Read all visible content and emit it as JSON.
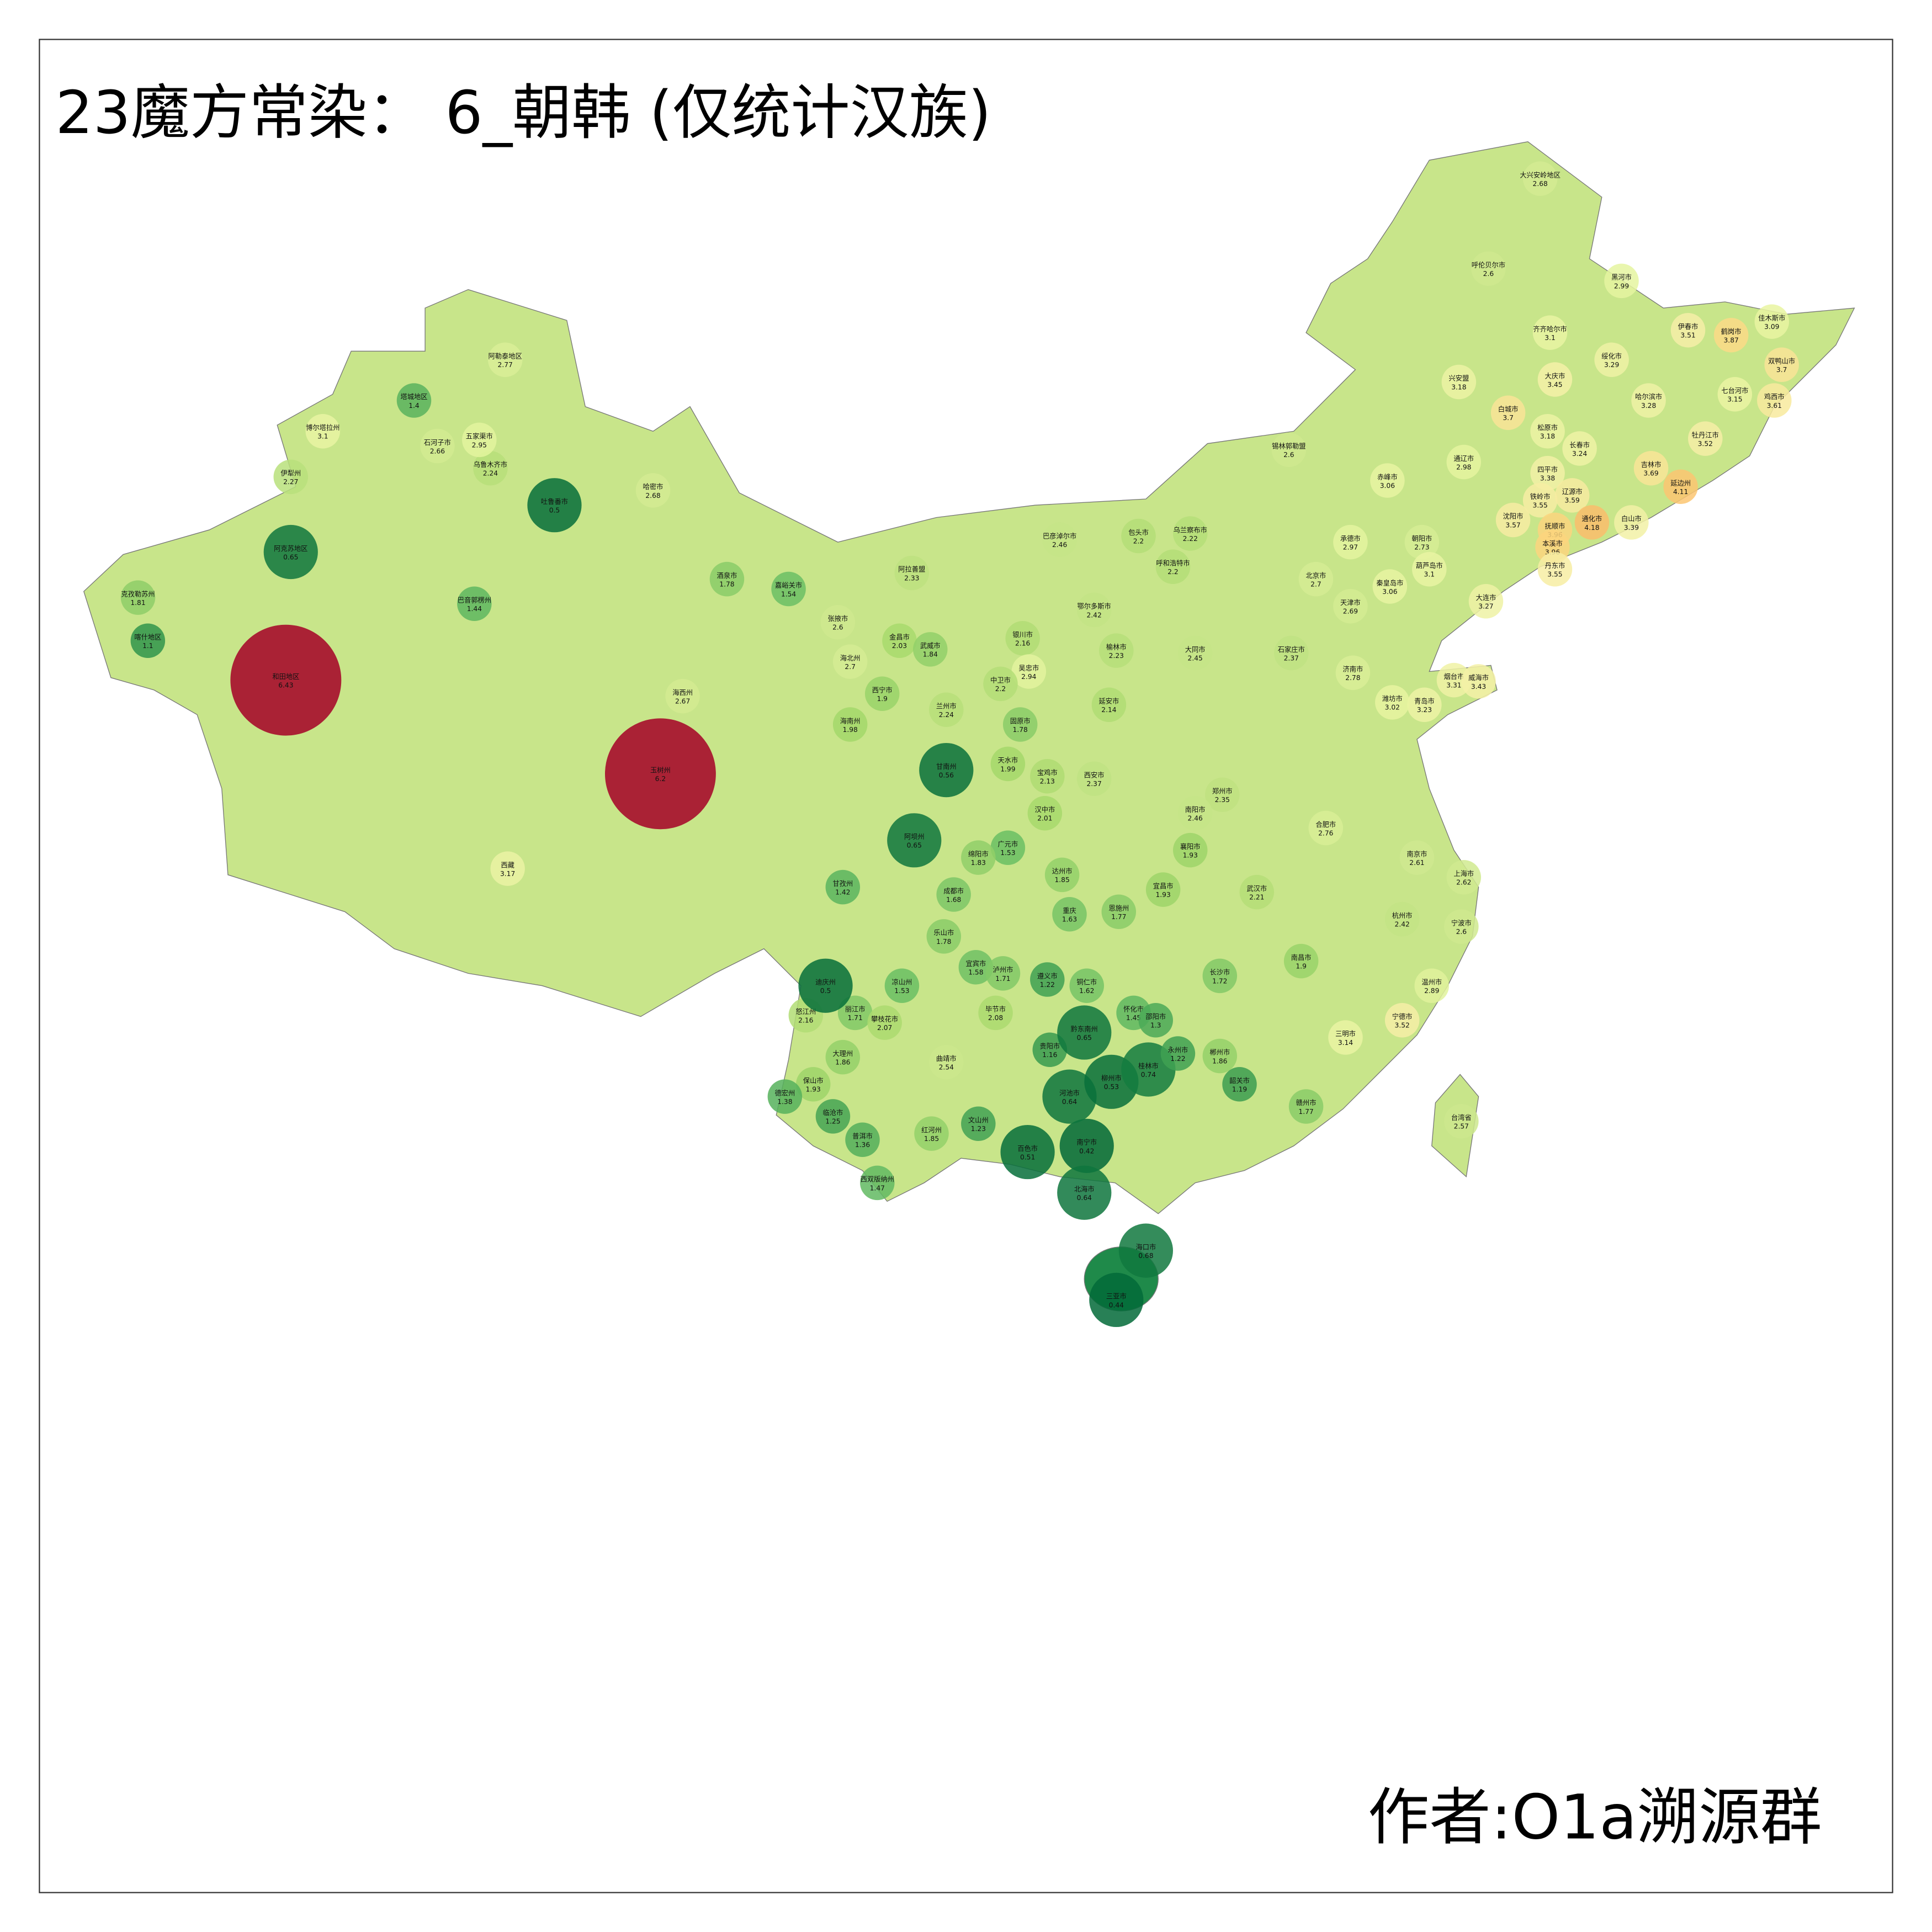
{
  "title": "23魔方常染： 6_朝韩 (仅统计汉族)",
  "author": "作者:O1a溯源群",
  "regions": [
    {
      "name": "大兴安岭地区",
      "value": 2.68
    },
    {
      "name": "呼伦贝尔市",
      "value": 2.6
    },
    {
      "name": "黑河市",
      "value": 2.99
    },
    {
      "name": "齐齐哈尔市",
      "value": 3.1
    },
    {
      "name": "伊春市",
      "value": 3.51
    },
    {
      "name": "鹤岗市",
      "value": 3.87
    },
    {
      "name": "佳木斯市",
      "value": 3.09
    },
    {
      "name": "双鸭山市",
      "value": 3.7
    },
    {
      "name": "绥化市",
      "value": 3.29
    },
    {
      "name": "大庆市",
      "value": 3.45
    },
    {
      "name": "哈尔滨市",
      "value": 3.28
    },
    {
      "name": "七台河市",
      "value": 3.15
    },
    {
      "name": "鸡西市",
      "value": 3.61
    },
    {
      "name": "兴安盟",
      "value": 3.18
    },
    {
      "name": "白城市",
      "value": 3.7
    },
    {
      "name": "松原市",
      "value": 3.18
    },
    {
      "name": "长春市",
      "value": 3.24
    },
    {
      "name": "牡丹江市",
      "value": 3.52
    },
    {
      "name": "吉林市",
      "value": 3.69
    },
    {
      "name": "延边州",
      "value": 4.11
    },
    {
      "name": "通辽市",
      "value": 2.98
    },
    {
      "name": "四平市",
      "value": 3.38
    },
    {
      "name": "铁岭市",
      "value": 3.55
    },
    {
      "name": "辽源市",
      "value": 3.59
    },
    {
      "name": "赤峰市",
      "value": 3.06
    },
    {
      "name": "抚顺市",
      "value": 3.96
    },
    {
      "name": "通化市",
      "value": 4.18
    },
    {
      "name": "白山市",
      "value": 3.39
    },
    {
      "name": "沈阳市",
      "value": 3.57
    },
    {
      "name": "本溪市",
      "value": 3.96
    },
    {
      "name": "丹东市",
      "value": 3.55
    },
    {
      "name": "大连市",
      "value": 3.27
    },
    {
      "name": "锡林郭勒盟",
      "value": 2.6
    },
    {
      "name": "承德市",
      "value": 2.97
    },
    {
      "name": "朝阳市",
      "value": 2.73
    },
    {
      "name": "葫芦岛市",
      "value": 3.1
    },
    {
      "name": "秦皇岛市",
      "value": 3.06
    },
    {
      "name": "北京市",
      "value": 2.7
    },
    {
      "name": "天津市",
      "value": 2.69
    },
    {
      "name": "乌兰察布市",
      "value": 2.22
    },
    {
      "name": "呼和浩特市",
      "value": 2.2
    },
    {
      "name": "包头市",
      "value": 2.2
    },
    {
      "name": "巴彦淖尔市",
      "value": 2.46
    },
    {
      "name": "鄂尔多斯市",
      "value": 2.42
    },
    {
      "name": "阿拉善盟",
      "value": 2.33
    },
    {
      "name": "大同市",
      "value": 2.45
    },
    {
      "name": "石家庄市",
      "value": 2.37
    },
    {
      "name": "烟台市",
      "value": 3.31
    },
    {
      "name": "威海市",
      "value": 3.43
    },
    {
      "name": "青岛市",
      "value": 3.23
    },
    {
      "name": "济南市",
      "value": 2.78
    },
    {
      "name": "潍坊市",
      "value": 3.02
    },
    {
      "name": "西安市",
      "value": 2.37
    },
    {
      "name": "郑州市",
      "value": 2.35
    },
    {
      "name": "南阳市",
      "value": 2.46
    },
    {
      "name": "上海市",
      "value": 2.62
    },
    {
      "name": "南京市",
      "value": 2.61
    },
    {
      "name": "杭州市",
      "value": 2.42
    },
    {
      "name": "宁波市",
      "value": 2.6
    },
    {
      "name": "温州市",
      "value": 2.89
    },
    {
      "name": "宁德市",
      "value": 3.52
    },
    {
      "name": "三明市",
      "value": 3.14
    },
    {
      "name": "台湾省",
      "value": 2.57
    },
    {
      "name": "武汉市",
      "value": 2.21
    },
    {
      "name": "长沙市",
      "value": 1.72
    },
    {
      "name": "南昌市",
      "value": 1.9
    },
    {
      "name": "赣州市",
      "value": 1.77
    },
    {
      "name": "重庆",
      "value": 1.63
    },
    {
      "name": "成都市",
      "value": 1.68
    },
    {
      "name": "贵阳市",
      "value": 1.16
    },
    {
      "name": "遵义市",
      "value": 1.22
    },
    {
      "name": "曲靖市",
      "value": 2.54
    },
    {
      "name": "大理州",
      "value": 1.86
    },
    {
      "name": "丽江市",
      "value": 1.71
    },
    {
      "name": "怒江州",
      "value": 2.16
    },
    {
      "name": "迪庆州",
      "value": 0.5
    },
    {
      "name": "甘孜州",
      "value": 1.42
    },
    {
      "name": "阿坝州",
      "value": 0.65
    },
    {
      "name": "甘南州",
      "value": 0.56
    },
    {
      "name": "兰州市",
      "value": 2.24
    },
    {
      "name": "西宁市",
      "value": 1.9
    },
    {
      "name": "海南州",
      "value": 1.98
    },
    {
      "name": "海西州",
      "value": 2.67
    },
    {
      "name": "玉树州",
      "value": 6.2
    },
    {
      "name": "和田地区",
      "value": 6.43
    },
    {
      "name": "阿克苏地区",
      "value": 0.65
    },
    {
      "name": "吐鲁番市",
      "value": 0.5
    },
    {
      "name": "巴音郭楞州",
      "value": 1.44
    },
    {
      "name": "喀什地区",
      "value": 1.1
    },
    {
      "name": "克孜勒苏州",
      "value": 1.81
    },
    {
      "name": "伊犁州",
      "value": 2.27
    },
    {
      "name": "塔城地区",
      "value": 1.4
    },
    {
      "name": "阿勒泰地区",
      "value": 2.77
    },
    {
      "name": "博尔塔拉州",
      "value": 3.1
    },
    {
      "name": "乌鲁木齐市",
      "value": 2.24
    },
    {
      "name": "石河子市",
      "value": 2.66
    },
    {
      "name": "五家渠市",
      "value": 2.95
    },
    {
      "name": "哈密市",
      "value": 2.68
    },
    {
      "name": "酒泉市",
      "value": 1.78
    },
    {
      "name": "嘉峪关市",
      "value": 1.54
    },
    {
      "name": "张掖市",
      "value": 2.6
    },
    {
      "name": "金昌市",
      "value": 2.03
    },
    {
      "name": "武威市",
      "value": 1.84
    },
    {
      "name": "海北州",
      "value": 2.7
    },
    {
      "name": "西藏",
      "value": 3.17
    },
    {
      "name": "南宁市",
      "value": 0.42
    },
    {
      "name": "河池市",
      "value": 0.64
    },
    {
      "name": "柳州市",
      "value": 0.53
    },
    {
      "name": "桂林市",
      "value": 0.74
    },
    {
      "name": "海口市",
      "value": 0.68
    },
    {
      "name": "三亚市",
      "value": 0.44
    },
    {
      "name": "百色市",
      "value": 0.51
    },
    {
      "name": "北海市",
      "value": 0.64
    },
    {
      "name": "文山州",
      "value": 1.23
    },
    {
      "name": "红河州",
      "value": 1.85
    },
    {
      "name": "普洱市",
      "value": 1.36
    },
    {
      "name": "西双版纳州",
      "value": 1.47
    },
    {
      "name": "临沧市",
      "value": 1.25
    },
    {
      "name": "保山市",
      "value": 1.93
    },
    {
      "name": "德宏州",
      "value": 1.38
    },
    {
      "name": "攀枝花市",
      "value": 2.07
    },
    {
      "name": "凉山州",
      "value": 1.53
    },
    {
      "name": "乐山市",
      "value": 1.78
    },
    {
      "name": "宜宾市",
      "value": 1.58
    },
    {
      "name": "泸州市",
      "value": 1.71
    },
    {
      "name": "广元市",
      "value": 1.53
    },
    {
      "name": "达州市",
      "value": 1.85
    },
    {
      "name": "绵阳市",
      "value": 1.83
    },
    {
      "name": "汉中市",
      "value": 2.01
    },
    {
      "name": "宜昌市",
      "value": 1.93
    },
    {
      "name": "襄阳市",
      "value": 1.93
    },
    {
      "name": "恩施州",
      "value": 1.77
    },
    {
      "name": "怀化市",
      "value": 1.45
    },
    {
      "name": "邵阳市",
      "value": 1.3
    },
    {
      "name": "永州市",
      "value": 1.22
    },
    {
      "name": "郴州市",
      "value": 1.86
    },
    {
      "name": "韶关市",
      "value": 1.19
    },
    {
      "name": "黔东南州",
      "value": 0.65
    },
    {
      "name": "毕节市",
      "value": 2.08
    },
    {
      "name": "铜仁市",
      "value": 1.62
    },
    {
      "name": "银川市",
      "value": 2.16
    },
    {
      "name": "吴忠市",
      "value": 2.94
    },
    {
      "name": "中卫市",
      "value": 2.2
    },
    {
      "name": "固原市",
      "value": 1.78
    },
    {
      "name": "天水市",
      "value": 1.99
    },
    {
      "name": "宝鸡市",
      "value": 2.13
    },
    {
      "name": "延安市",
      "value": 2.14
    },
    {
      "name": "榆林市",
      "value": 2.23
    },
    {
      "name": "合肥市",
      "value": 2.76
    }
  ]
}
